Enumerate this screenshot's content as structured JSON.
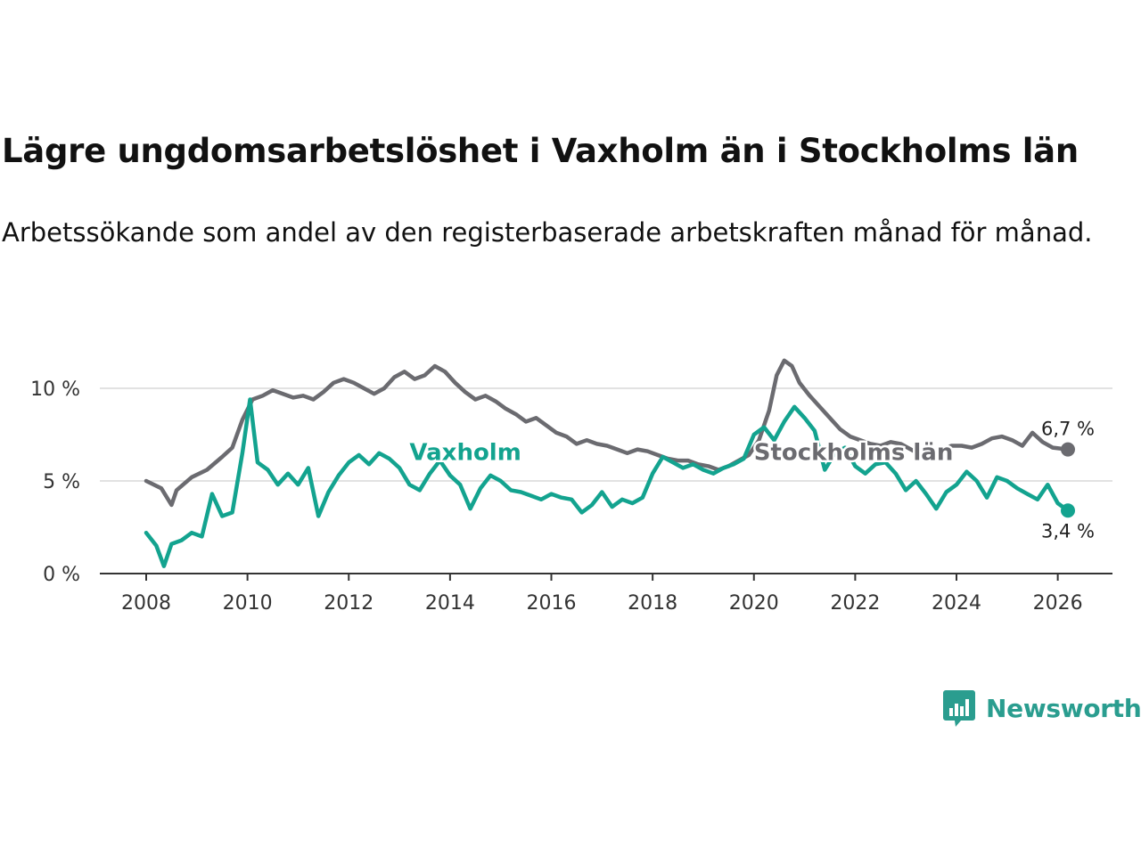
{
  "title": "Lägre ungdomsarbetslöshet i Vaxholm än i Stockholms län",
  "subtitle": "Arbetssökande som andel av den registerbaserade arbetskraften månad för månad.",
  "brand": {
    "name": "Newsworthy",
    "color": "#2a9d8f",
    "icon": "newsworthy-logo-icon"
  },
  "chart_data": {
    "type": "line",
    "title": "Lägre ungdomsarbetslöshet i Vaxholm än i Stockholms län",
    "xlabel": "",
    "ylabel": "",
    "xlim": [
      2008,
      2026.2
    ],
    "ylim": [
      0,
      10
    ],
    "x_ticks": [
      2008,
      2010,
      2012,
      2014,
      2016,
      2018,
      2020,
      2022,
      2024,
      2026
    ],
    "x_tick_labels": [
      "2008",
      "2010",
      "2012",
      "2014",
      "2016",
      "2018",
      "2020",
      "2022",
      "2024",
      "2026"
    ],
    "y_ticks": [
      0,
      5,
      10
    ],
    "y_tick_labels": [
      "0 %",
      "5 %",
      "10 %"
    ],
    "grid": true,
    "series": [
      {
        "name": "Stockholms län",
        "color": "#6b6b70",
        "end_label": "6,7 %",
        "points": [
          [
            2008.0,
            5.0
          ],
          [
            2008.3,
            4.6
          ],
          [
            2008.5,
            3.7
          ],
          [
            2008.6,
            4.5
          ],
          [
            2008.9,
            5.2
          ],
          [
            2009.2,
            5.6
          ],
          [
            2009.5,
            6.3
          ],
          [
            2009.7,
            6.8
          ],
          [
            2009.9,
            8.3
          ],
          [
            2010.1,
            9.4
          ],
          [
            2010.3,
            9.6
          ],
          [
            2010.5,
            9.9
          ],
          [
            2010.7,
            9.7
          ],
          [
            2010.9,
            9.5
          ],
          [
            2011.1,
            9.6
          ],
          [
            2011.3,
            9.4
          ],
          [
            2011.5,
            9.8
          ],
          [
            2011.7,
            10.3
          ],
          [
            2011.9,
            10.5
          ],
          [
            2012.1,
            10.3
          ],
          [
            2012.3,
            10.0
          ],
          [
            2012.5,
            9.7
          ],
          [
            2012.7,
            10.0
          ],
          [
            2012.9,
            10.6
          ],
          [
            2013.1,
            10.9
          ],
          [
            2013.3,
            10.5
          ],
          [
            2013.5,
            10.7
          ],
          [
            2013.7,
            11.2
          ],
          [
            2013.9,
            10.9
          ],
          [
            2014.1,
            10.3
          ],
          [
            2014.3,
            9.8
          ],
          [
            2014.5,
            9.4
          ],
          [
            2014.7,
            9.6
          ],
          [
            2014.9,
            9.3
          ],
          [
            2015.1,
            8.9
          ],
          [
            2015.3,
            8.6
          ],
          [
            2015.5,
            8.2
          ],
          [
            2015.7,
            8.4
          ],
          [
            2015.9,
            8.0
          ],
          [
            2016.1,
            7.6
          ],
          [
            2016.3,
            7.4
          ],
          [
            2016.5,
            7.0
          ],
          [
            2016.7,
            7.2
          ],
          [
            2016.9,
            7.0
          ],
          [
            2017.1,
            6.9
          ],
          [
            2017.3,
            6.7
          ],
          [
            2017.5,
            6.5
          ],
          [
            2017.7,
            6.7
          ],
          [
            2017.9,
            6.6
          ],
          [
            2018.1,
            6.4
          ],
          [
            2018.3,
            6.2
          ],
          [
            2018.5,
            6.1
          ],
          [
            2018.7,
            6.1
          ],
          [
            2018.9,
            5.9
          ],
          [
            2019.1,
            5.8
          ],
          [
            2019.3,
            5.6
          ],
          [
            2019.5,
            5.8
          ],
          [
            2019.7,
            6.1
          ],
          [
            2019.9,
            6.4
          ],
          [
            2020.1,
            7.2
          ],
          [
            2020.3,
            8.8
          ],
          [
            2020.45,
            10.7
          ],
          [
            2020.6,
            11.5
          ],
          [
            2020.75,
            11.2
          ],
          [
            2020.9,
            10.3
          ],
          [
            2021.1,
            9.6
          ],
          [
            2021.3,
            9.0
          ],
          [
            2021.5,
            8.4
          ],
          [
            2021.7,
            7.8
          ],
          [
            2021.9,
            7.4
          ],
          [
            2022.1,
            7.2
          ],
          [
            2022.3,
            7.0
          ],
          [
            2022.5,
            6.9
          ],
          [
            2022.7,
            7.1
          ],
          [
            2022.9,
            7.0
          ],
          [
            2023.1,
            6.7
          ],
          [
            2023.3,
            6.4
          ],
          [
            2023.5,
            6.3
          ],
          [
            2023.7,
            6.6
          ],
          [
            2023.9,
            6.9
          ],
          [
            2024.1,
            6.9
          ],
          [
            2024.3,
            6.8
          ],
          [
            2024.5,
            7.0
          ],
          [
            2024.7,
            7.3
          ],
          [
            2024.9,
            7.4
          ],
          [
            2025.1,
            7.2
          ],
          [
            2025.3,
            6.9
          ],
          [
            2025.5,
            7.6
          ],
          [
            2025.7,
            7.1
          ],
          [
            2025.9,
            6.8
          ],
          [
            2026.2,
            6.7
          ]
        ]
      },
      {
        "name": "Vaxholm",
        "color": "#13a38f",
        "end_label": "3,4 %",
        "points": [
          [
            2008.0,
            2.2
          ],
          [
            2008.2,
            1.5
          ],
          [
            2008.35,
            0.4
          ],
          [
            2008.5,
            1.6
          ],
          [
            2008.7,
            1.8
          ],
          [
            2008.9,
            2.2
          ],
          [
            2009.1,
            2.0
          ],
          [
            2009.3,
            4.3
          ],
          [
            2009.5,
            3.1
          ],
          [
            2009.7,
            3.3
          ],
          [
            2009.9,
            6.5
          ],
          [
            2010.05,
            9.4
          ],
          [
            2010.2,
            6.0
          ],
          [
            2010.4,
            5.6
          ],
          [
            2010.6,
            4.8
          ],
          [
            2010.8,
            5.4
          ],
          [
            2011.0,
            4.8
          ],
          [
            2011.2,
            5.7
          ],
          [
            2011.4,
            3.1
          ],
          [
            2011.6,
            4.4
          ],
          [
            2011.8,
            5.3
          ],
          [
            2012.0,
            6.0
          ],
          [
            2012.2,
            6.4
          ],
          [
            2012.4,
            5.9
          ],
          [
            2012.6,
            6.5
          ],
          [
            2012.8,
            6.2
          ],
          [
            2013.0,
            5.7
          ],
          [
            2013.2,
            4.8
          ],
          [
            2013.4,
            4.5
          ],
          [
            2013.6,
            5.4
          ],
          [
            2013.8,
            6.1
          ],
          [
            2014.0,
            5.3
          ],
          [
            2014.2,
            4.8
          ],
          [
            2014.4,
            3.5
          ],
          [
            2014.6,
            4.6
          ],
          [
            2014.8,
            5.3
          ],
          [
            2015.0,
            5.0
          ],
          [
            2015.2,
            4.5
          ],
          [
            2015.4,
            4.4
          ],
          [
            2015.6,
            4.2
          ],
          [
            2015.8,
            4.0
          ],
          [
            2016.0,
            4.3
          ],
          [
            2016.2,
            4.1
          ],
          [
            2016.4,
            4.0
          ],
          [
            2016.6,
            3.3
          ],
          [
            2016.8,
            3.7
          ],
          [
            2017.0,
            4.4
          ],
          [
            2017.2,
            3.6
          ],
          [
            2017.4,
            4.0
          ],
          [
            2017.6,
            3.8
          ],
          [
            2017.8,
            4.1
          ],
          [
            2018.0,
            5.4
          ],
          [
            2018.2,
            6.3
          ],
          [
            2018.4,
            6.0
          ],
          [
            2018.6,
            5.7
          ],
          [
            2018.8,
            5.9
          ],
          [
            2019.0,
            5.6
          ],
          [
            2019.2,
            5.4
          ],
          [
            2019.4,
            5.7
          ],
          [
            2019.6,
            5.9
          ],
          [
            2019.8,
            6.2
          ],
          [
            2020.0,
            7.5
          ],
          [
            2020.2,
            7.9
          ],
          [
            2020.4,
            7.2
          ],
          [
            2020.6,
            8.2
          ],
          [
            2020.8,
            9.0
          ],
          [
            2021.0,
            8.4
          ],
          [
            2021.2,
            7.7
          ],
          [
            2021.4,
            5.6
          ],
          [
            2021.6,
            6.5
          ],
          [
            2021.8,
            6.8
          ],
          [
            2022.0,
            5.8
          ],
          [
            2022.2,
            5.4
          ],
          [
            2022.4,
            5.9
          ],
          [
            2022.6,
            6.0
          ],
          [
            2022.8,
            5.4
          ],
          [
            2023.0,
            4.5
          ],
          [
            2023.2,
            5.0
          ],
          [
            2023.4,
            4.3
          ],
          [
            2023.6,
            3.5
          ],
          [
            2023.8,
            4.4
          ],
          [
            2024.0,
            4.8
          ],
          [
            2024.2,
            5.5
          ],
          [
            2024.4,
            5.0
          ],
          [
            2024.6,
            4.1
          ],
          [
            2024.8,
            5.2
          ],
          [
            2025.0,
            5.0
          ],
          [
            2025.2,
            4.6
          ],
          [
            2025.4,
            4.3
          ],
          [
            2025.6,
            4.0
          ],
          [
            2025.8,
            4.8
          ],
          [
            2026.0,
            3.8
          ],
          [
            2026.2,
            3.4
          ]
        ]
      }
    ],
    "annotations": [
      {
        "text": "Vaxholm",
        "series": "Vaxholm",
        "x": 2013.2,
        "y": 6.6
      },
      {
        "text": "Stockholms län",
        "series": "Stockholms län",
        "x": 2020.0,
        "y": 6.6
      }
    ]
  }
}
